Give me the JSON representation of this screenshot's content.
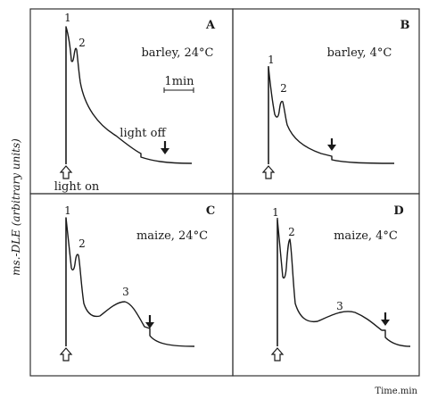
{
  "figure": {
    "ylabel": "ms.-DLE (arbitrary units)",
    "xlabel": "Time.min",
    "scalebar_label": "1min",
    "light_on_label": "light on",
    "light_off_label": "light off"
  },
  "chart_data": [
    {
      "type": "line",
      "panel": "A",
      "condition": "barley, 24°C",
      "peaks": [
        {
          "label": "1"
        },
        {
          "label": "2"
        }
      ]
    },
    {
      "type": "line",
      "panel": "B",
      "condition": "barley, 4°C",
      "peaks": [
        {
          "label": "1"
        },
        {
          "label": "2"
        }
      ]
    },
    {
      "type": "line",
      "panel": "C",
      "condition": "maize, 24°C",
      "peaks": [
        {
          "label": "1"
        },
        {
          "label": "2"
        },
        {
          "label": "3"
        }
      ]
    },
    {
      "type": "line",
      "panel": "D",
      "condition": "maize, 4°C",
      "peaks": [
        {
          "label": "1"
        },
        {
          "label": "2"
        },
        {
          "label": "3"
        }
      ]
    }
  ]
}
